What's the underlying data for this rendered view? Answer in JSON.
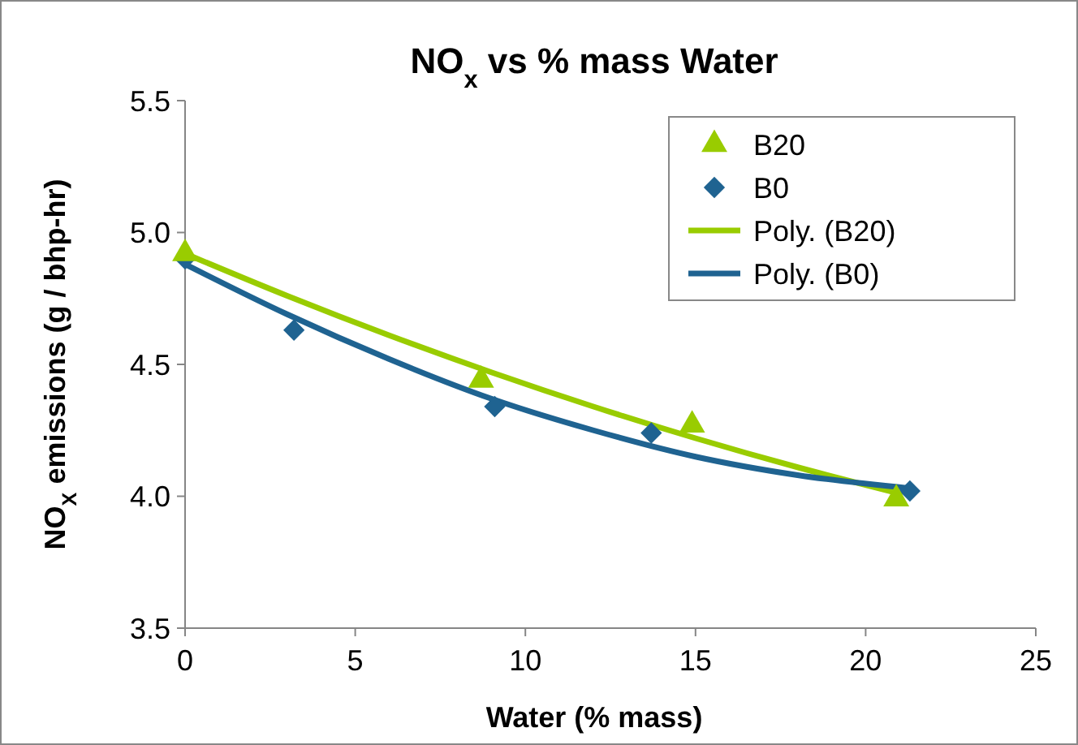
{
  "chart_data": {
    "type": "scatter",
    "title": "NO$_{x}$ vs % mass Water",
    "xlabel": "Water (% mass)",
    "ylabel": "NO$_{X}$ emissions (g / bhp-hr)",
    "xlim": [
      0,
      25
    ],
    "xticks": [
      0,
      5,
      10,
      15,
      20,
      25
    ],
    "ylim": [
      3.5,
      5.5
    ],
    "yticks": [
      3.5,
      {
        "value": 4,
        "label": "4.0"
      },
      4.5,
      {
        "value": 5,
        "label": "5.0"
      },
      5.5
    ],
    "grid": false,
    "legend": "top right",
    "series": [
      {
        "name": "B20",
        "color": "#99cc00",
        "marker": "triangle",
        "x": [
          0,
          8.7,
          14.9,
          20.9
        ],
        "values": [
          4.92,
          4.44,
          4.27,
          3.99
        ]
      },
      {
        "name": "B0",
        "color": "#1f6391",
        "marker": "diamond",
        "x": [
          0,
          3.2,
          9.1,
          13.7,
          21.3
        ],
        "values": [
          4.9,
          4.63,
          4.34,
          4.24,
          4.02
        ]
      },
      {
        "name": "Poly. (B20)",
        "type": "line",
        "color": "#99cc00",
        "x": [
          0,
          3,
          6,
          9,
          12,
          15,
          18,
          21
        ],
        "values": [
          4.92,
          4.76,
          4.61,
          4.47,
          4.34,
          4.22,
          4.11,
          4.01
        ]
      },
      {
        "name": "Poly. (B0)",
        "type": "line",
        "color": "#1f6391",
        "x": [
          0,
          3,
          6,
          9,
          12,
          15,
          18,
          21.3
        ],
        "values": [
          4.88,
          4.69,
          4.52,
          4.37,
          4.25,
          4.15,
          4.08,
          4.03
        ]
      }
    ]
  }
}
